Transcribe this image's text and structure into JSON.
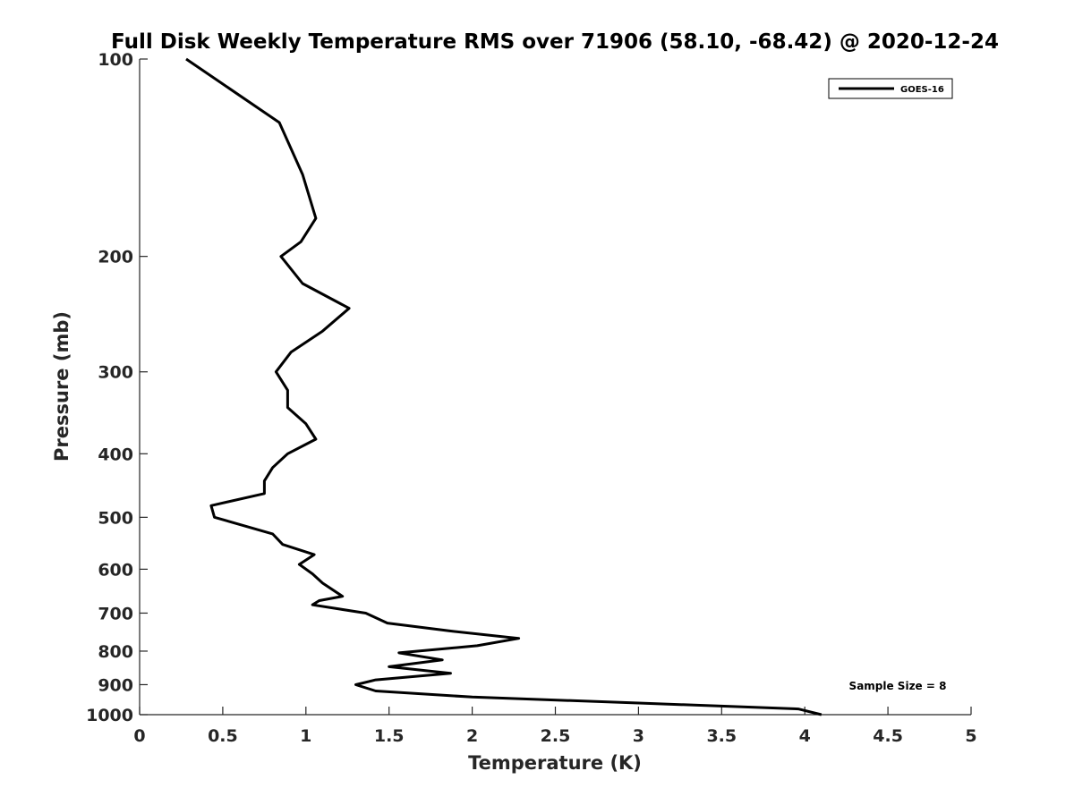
{
  "chart_data": {
    "type": "line",
    "title": "Full Disk Weekly Temperature RMS over 71906 (58.10, -68.42) @ 2020-12-24",
    "xlabel": "Temperature (K)",
    "ylabel": "Pressure (mb)",
    "xlim": [
      0,
      5
    ],
    "ylim": [
      100,
      1000
    ],
    "y_scale": "log",
    "y_reversed": true,
    "x_ticks": [
      "0",
      "0.5",
      "1",
      "1.5",
      "2",
      "2.5",
      "3",
      "3.5",
      "4",
      "4.5",
      "5"
    ],
    "y_ticks": [
      "100",
      "200",
      "300",
      "400",
      "500",
      "600",
      "700",
      "800",
      "900",
      "1000"
    ],
    "legend_position": "top-right",
    "grid": false,
    "series": [
      {
        "name": "GOES-16",
        "color": "#000000",
        "points": [
          [
            0.28,
            100
          ],
          [
            0.84,
            125
          ],
          [
            0.98,
            150
          ],
          [
            1.06,
            175
          ],
          [
            0.97,
            190
          ],
          [
            0.85,
            200
          ],
          [
            0.98,
            220
          ],
          [
            1.26,
            240
          ],
          [
            1.1,
            260
          ],
          [
            0.91,
            280
          ],
          [
            0.82,
            300
          ],
          [
            0.89,
            320
          ],
          [
            0.89,
            340
          ],
          [
            1.0,
            360
          ],
          [
            1.06,
            380
          ],
          [
            0.89,
            400
          ],
          [
            0.8,
            420
          ],
          [
            0.75,
            440
          ],
          [
            0.75,
            460
          ],
          [
            0.43,
            480
          ],
          [
            0.45,
            500
          ],
          [
            0.8,
            530
          ],
          [
            0.86,
            550
          ],
          [
            1.05,
            570
          ],
          [
            0.96,
            590
          ],
          [
            1.04,
            610
          ],
          [
            1.1,
            630
          ],
          [
            1.22,
            660
          ],
          [
            1.08,
            670
          ],
          [
            1.04,
            680
          ],
          [
            1.36,
            700
          ],
          [
            1.49,
            725
          ],
          [
            1.86,
            745
          ],
          [
            2.28,
            765
          ],
          [
            2.03,
            785
          ],
          [
            1.56,
            805
          ],
          [
            1.82,
            825
          ],
          [
            1.5,
            845
          ],
          [
            1.87,
            865
          ],
          [
            1.42,
            885
          ],
          [
            1.3,
            900
          ],
          [
            1.42,
            920
          ],
          [
            2.0,
            940
          ],
          [
            3.0,
            960
          ],
          [
            3.96,
            980
          ],
          [
            4.1,
            1000
          ]
        ]
      }
    ],
    "annotation": "Sample Size = 8"
  }
}
